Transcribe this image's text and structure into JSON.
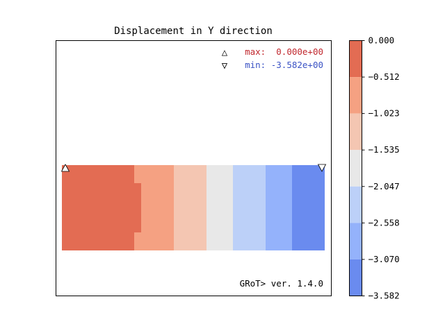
{
  "chart_data": {
    "type": "heatmap",
    "title": "Displacement in Y direction",
    "xlabel": "",
    "ylabel": "",
    "grid": false,
    "colorbar": {
      "ticks": [
        "0.000",
        "−0.512",
        "−1.023",
        "−1.535",
        "−2.047",
        "−2.558",
        "−3.070",
        "−3.582"
      ],
      "range": [
        -3.582,
        0.0
      ],
      "levels": [
        {
          "from": -0.512,
          "to": 0.0,
          "color": "#e36c53"
        },
        {
          "from": -1.023,
          "to": -0.512,
          "color": "#f5a182"
        },
        {
          "from": -1.535,
          "to": -1.023,
          "color": "#f4c6b2"
        },
        {
          "from": -2.047,
          "to": -1.535,
          "color": "#e8e8e8"
        },
        {
          "from": -2.558,
          "to": -2.047,
          "color": "#bcd0f8"
        },
        {
          "from": -3.07,
          "to": -2.558,
          "color": "#94b2fb"
        },
        {
          "from": -3.582,
          "to": -3.07,
          "color": "#6a8bef"
        }
      ]
    },
    "annotations": {
      "max_symbol": "△",
      "max_label": "max:  0.000e+00",
      "min_symbol": "▽",
      "min_label": "min: -3.582e+00",
      "max_color": "#c0272d",
      "min_color": "#3a52c4",
      "version": "GRoT> ver. 1.4.0"
    }
  }
}
